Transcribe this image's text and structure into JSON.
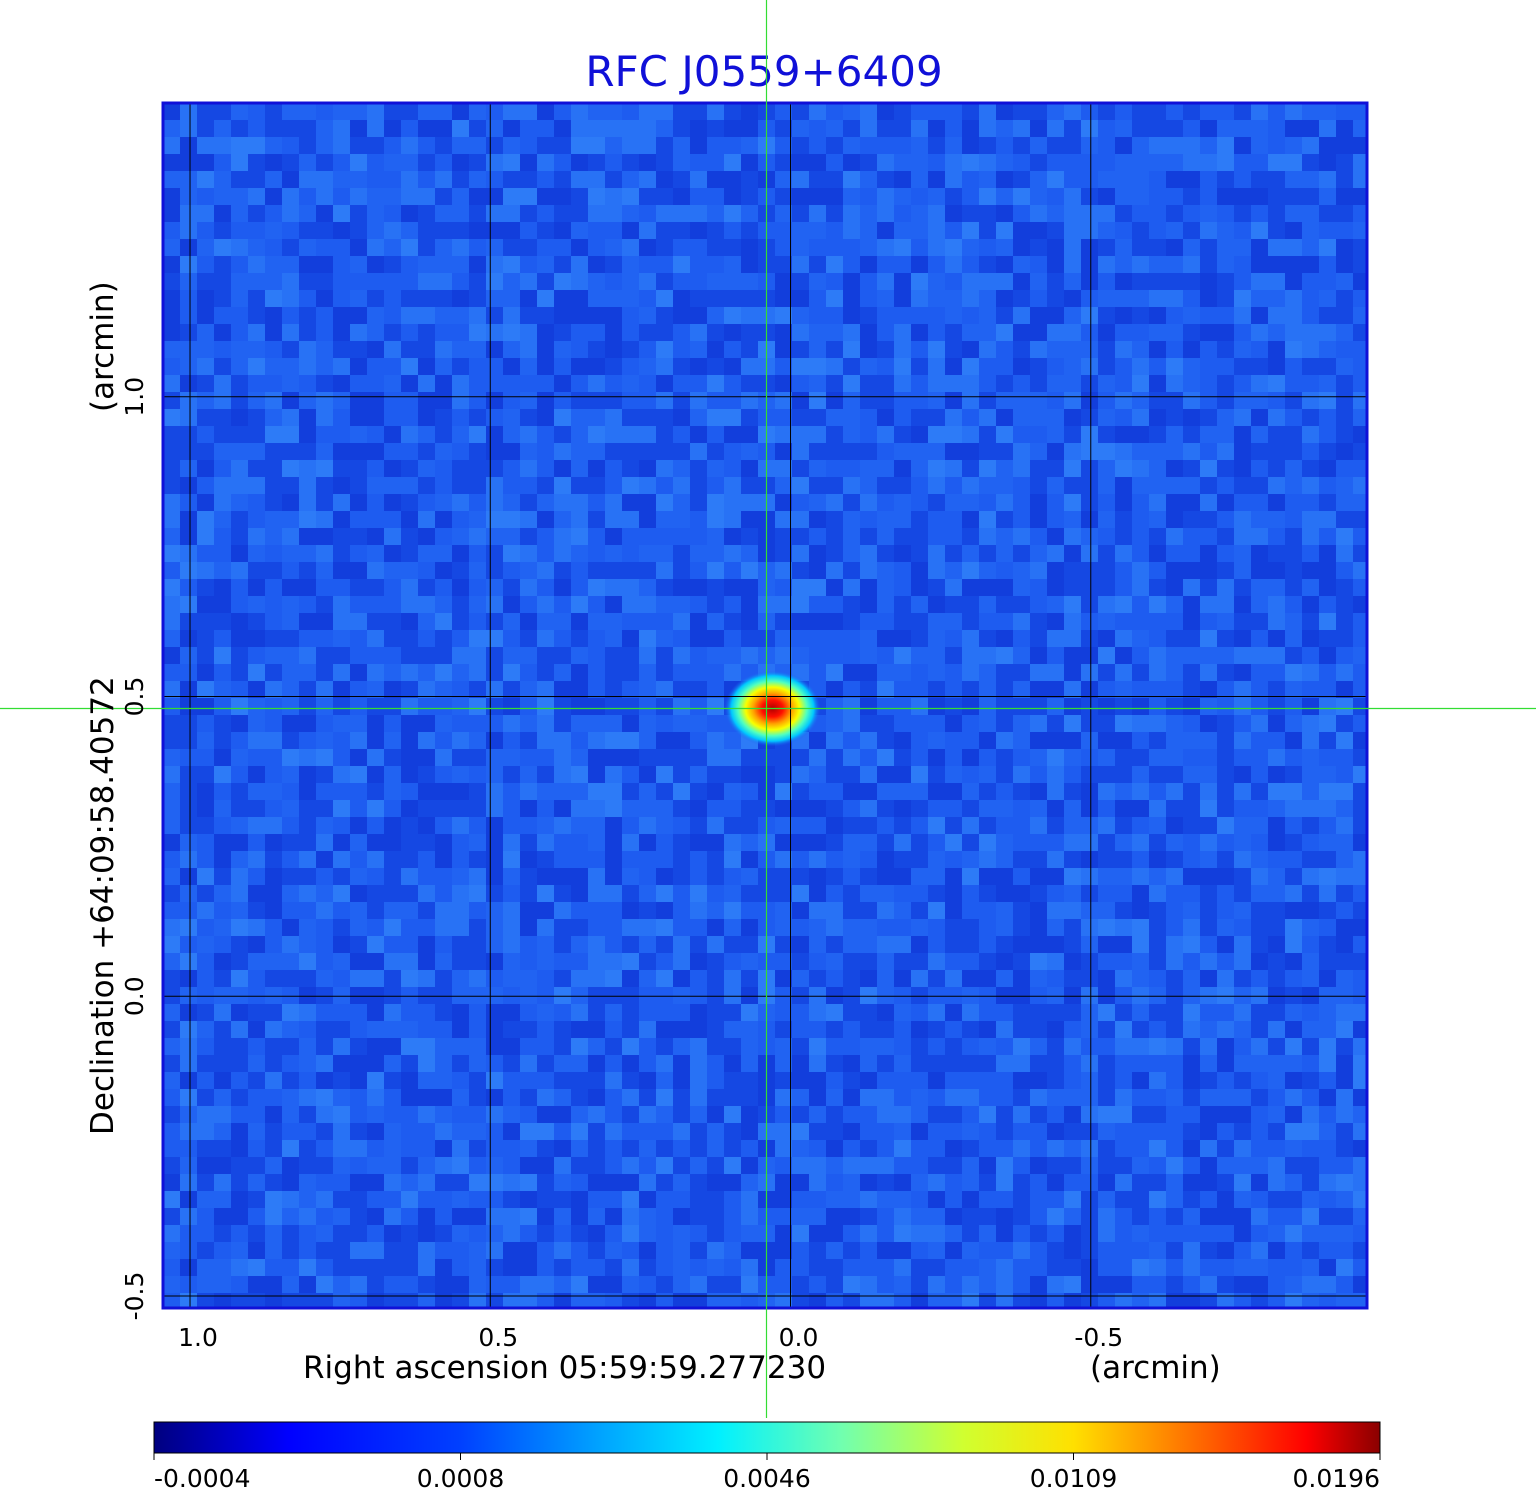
{
  "chart_data": {
    "type": "heatmap",
    "title": "RFC J0559+6409",
    "xlabel": "Right ascension  05:59:59.277230",
    "xunit": "(arcmin)",
    "ylabel": "Declination  +64:09:58.40572",
    "yunit": "(arcmin)",
    "x_ticks": [
      {
        "value": 1.0,
        "label": "1.0"
      },
      {
        "value": 0.5,
        "label": "0.5"
      },
      {
        "value": 0.0,
        "label": "0.0"
      },
      {
        "value": -0.5,
        "label": "-0.5"
      }
    ],
    "y_ticks": [
      {
        "value": 1.0,
        "label": "1.0"
      },
      {
        "value": 0.5,
        "label": "0.5"
      },
      {
        "value": 0.0,
        "label": "0.0"
      },
      {
        "value": -0.5,
        "label": "-0.5"
      }
    ],
    "xlim": [
      1.045,
      -0.96
    ],
    "ylim": [
      -0.52,
      1.49
    ],
    "x_reversed": true,
    "grid": true,
    "crosshair": {
      "x": 0.04,
      "y": 0.48
    },
    "peak": {
      "x": 0.03,
      "y": 0.48,
      "value": 0.0196
    },
    "colorbar": {
      "colormap": "jet",
      "ticks": [
        {
          "value": -0.0004,
          "label": "-0.0004"
        },
        {
          "value": 0.0008,
          "label": "0.0008"
        },
        {
          "value": 0.0046,
          "label": "0.0046"
        },
        {
          "value": 0.0109,
          "label": "0.0109"
        },
        {
          "value": 0.0196,
          "label": "0.0196"
        }
      ],
      "min": -0.0004,
      "max": 0.0196
    },
    "colors": {
      "frame": "#1010d8",
      "grid": "#000000",
      "crosshair": "#33dd33",
      "background_map": "#1e5cf0"
    }
  }
}
